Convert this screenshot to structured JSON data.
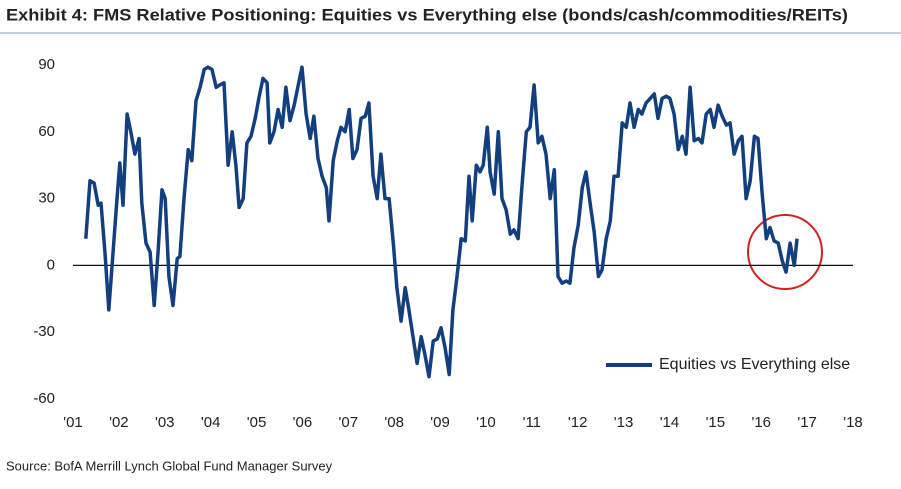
{
  "chart_data": {
    "type": "line",
    "title": "Exhibit 4: FMS Relative Positioning: Equities vs Everything else (bonds/cash/commodities/REITs)",
    "source": "Source: BofA Merrill Lynch Global Fund Manager Survey",
    "legend": "lower right",
    "x": [
      2001.28,
      2001.37,
      2001.46,
      2001.55,
      2001.61,
      2001.7,
      2001.78,
      2001.87,
      2001.96,
      2002.02,
      2002.09,
      2002.18,
      2002.26,
      2002.35,
      2002.44,
      2002.5,
      2002.59,
      2002.68,
      2002.77,
      2002.85,
      2002.94,
      2003.01,
      2003.09,
      2003.18,
      2003.27,
      2003.33,
      2003.42,
      2003.51,
      2003.59,
      2003.68,
      2003.77,
      2003.86,
      2003.94,
      2004.03,
      2004.12,
      2004.2,
      2004.29,
      2004.38,
      2004.47,
      2004.55,
      2004.62,
      2004.71,
      2004.79,
      2004.88,
      2004.97,
      2005.05,
      2005.14,
      2005.23,
      2005.29,
      2005.38,
      2005.47,
      2005.56,
      2005.64,
      2005.73,
      2005.82,
      2005.9,
      2005.99,
      2006.08,
      2006.17,
      2006.25,
      2006.34,
      2006.43,
      2006.52,
      2006.58,
      2006.67,
      2006.76,
      2006.84,
      2006.93,
      2007.02,
      2007.1,
      2007.19,
      2007.28,
      2007.37,
      2007.45,
      2007.54,
      2007.63,
      2007.71,
      2007.8,
      2007.89,
      2007.98,
      2008.06,
      2008.15,
      2008.24,
      2008.32,
      2008.41,
      2008.5,
      2008.59,
      2008.67,
      2008.76,
      2008.85,
      2008.94,
      2009.02,
      2009.11,
      2009.2,
      2009.28,
      2009.37,
      2009.46,
      2009.55,
      2009.63,
      2009.7,
      2009.79,
      2009.87,
      2009.94,
      2010.03,
      2010.09,
      2010.18,
      2010.27,
      2010.35,
      2010.44,
      2010.53,
      2010.61,
      2010.7,
      2010.79,
      2010.88,
      2010.96,
      2011.05,
      2011.14,
      2011.22,
      2011.31,
      2011.4,
      2011.49,
      2011.57,
      2011.66,
      2011.75,
      2011.83,
      2011.92,
      2012.01,
      2012.1,
      2012.18,
      2012.27,
      2012.36,
      2012.45,
      2012.53,
      2012.62,
      2012.71,
      2012.79,
      2012.88,
      2012.97,
      2013.06,
      2013.14,
      2013.23,
      2013.32,
      2013.4,
      2013.49,
      2013.58,
      2013.67,
      2013.75,
      2013.84,
      2013.93,
      2014.01,
      2014.1,
      2014.19,
      2014.28,
      2014.36,
      2014.45,
      2014.54,
      2014.63,
      2014.71,
      2014.8,
      2014.89,
      2014.97,
      2015.06,
      2015.15,
      2015.24,
      2015.32,
      2015.41,
      2015.5,
      2015.58,
      2015.67,
      2015.76,
      2015.85,
      2015.93,
      2016.02,
      2016.11,
      2016.19,
      2016.28,
      2016.37,
      2016.46,
      2016.54,
      2016.63,
      2016.72,
      2016.78
    ],
    "series": [
      {
        "name": "Equities vs Everything else",
        "color": "#123f7f",
        "values": [
          12,
          38,
          37,
          27,
          28,
          5,
          -20,
          5,
          30,
          46,
          27,
          68,
          60,
          50,
          57,
          28,
          10,
          6,
          -18,
          5,
          34,
          30,
          -5,
          -18,
          3,
          4,
          30,
          52,
          47,
          74,
          80,
          88,
          89,
          88,
          80,
          81,
          82,
          45,
          60,
          45,
          26,
          30,
          55,
          58,
          66,
          75,
          84,
          82,
          55,
          60,
          70,
          62,
          80,
          65,
          72,
          80,
          89,
          68,
          57,
          67,
          48,
          40,
          35,
          20,
          47,
          56,
          62,
          60,
          70,
          48,
          52,
          66,
          67,
          73,
          40,
          30,
          50,
          30,
          30,
          10,
          -10,
          -25,
          -10,
          -20,
          -32,
          -44,
          -32,
          -40,
          -50,
          -34,
          -33,
          -28,
          -37,
          -49,
          -20,
          -5,
          12,
          11,
          40,
          20,
          45,
          42,
          45,
          62,
          42,
          32,
          60,
          30,
          25,
          14,
          16,
          12,
          37,
          60,
          62,
          81,
          55,
          58,
          50,
          30,
          43,
          -5,
          -8,
          -7,
          -8,
          8,
          18,
          35,
          42,
          28,
          15,
          -5,
          -2,
          12,
          20,
          40,
          40,
          64,
          62,
          73,
          62,
          70,
          68,
          73,
          75,
          77,
          66,
          75,
          76,
          75,
          68,
          52,
          58,
          50,
          80,
          56,
          57,
          55,
          68,
          70,
          62,
          72,
          67,
          63,
          64,
          50,
          56,
          58,
          30,
          38,
          58,
          57,
          32,
          12,
          17,
          11,
          10,
          2,
          -3,
          10,
          0,
          12
        ]
      }
    ],
    "xlim": [
      2001,
      2018
    ],
    "xticks": [
      {
        "value": 2001,
        "label": "'01"
      },
      {
        "value": 2002,
        "label": "'02"
      },
      {
        "value": 2003,
        "label": "'03"
      },
      {
        "value": 2004,
        "label": "'04"
      },
      {
        "value": 2005,
        "label": "'05"
      },
      {
        "value": 2006,
        "label": "'06"
      },
      {
        "value": 2007,
        "label": "'07"
      },
      {
        "value": 2008,
        "label": "'08"
      },
      {
        "value": 2009,
        "label": "'09"
      },
      {
        "value": 2010,
        "label": "'10"
      },
      {
        "value": 2011,
        "label": "'11"
      },
      {
        "value": 2012,
        "label": "'12"
      },
      {
        "value": 2013,
        "label": "'13"
      },
      {
        "value": 2014,
        "label": "'14"
      },
      {
        "value": 2015,
        "label": "'15"
      },
      {
        "value": 2016,
        "label": "'16"
      },
      {
        "value": 2017,
        "label": "'17"
      },
      {
        "value": 2018,
        "label": "'18"
      }
    ],
    "ylim": [
      -60,
      90
    ],
    "yticks": [
      -60,
      -30,
      0,
      30,
      60,
      90
    ]
  }
}
